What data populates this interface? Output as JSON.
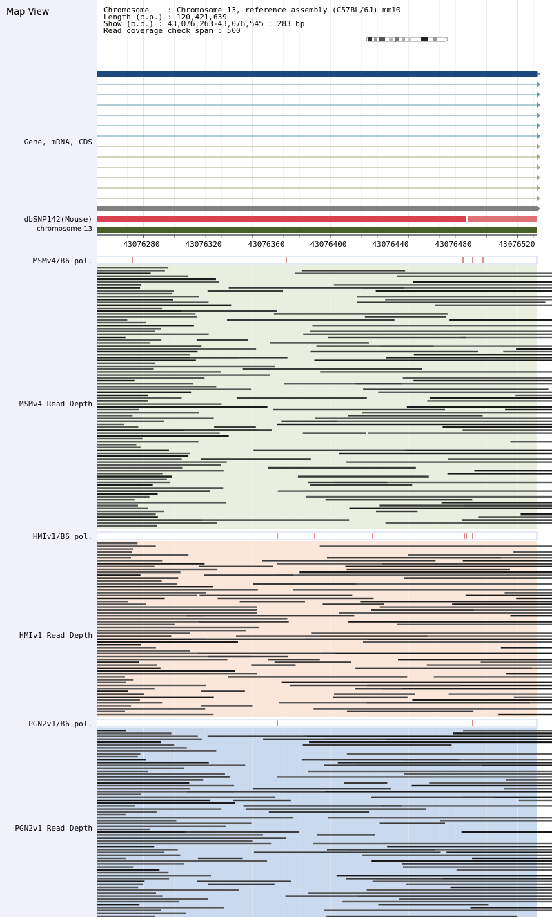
{
  "title": "Map View",
  "info": {
    "line1": "Chromosome    : Chromosome 13, reference assembly (C57BL/6J) mm10",
    "line2": "Length (b.p.) : 120,421,639",
    "line3": "Show (b.p.) : 43,076,263-43,076,545 : 283 bp",
    "line4": "Read coverage check span : 500"
  },
  "labels": {
    "gene": "Gene, mRNA, CDS",
    "dbsnp": "dbSNP142(Mouse)",
    "chrom": "chromosome 13",
    "msm_pol": "MSMv4/B6 pol.",
    "msm_depth": "MSMv4 Read Depth",
    "hmi_pol": "HMIv1/B6 pol.",
    "hmi_depth": "HMIv1 Read Depth",
    "pgn_pol": "PGN2v1/B6 pol.",
    "pgn_depth": "PGN2v1 Read Depth"
  },
  "axis_ticks": [
    "43076280",
    "43076320",
    "43076360",
    "43076400",
    "43076440",
    "43076480",
    "43076520"
  ],
  "colors": {
    "left_panel": "#f1f1fb",
    "gene_main": "#1c4a7e",
    "transcript_teal": "#5f9ea8",
    "transcript_olive": "#a8a878",
    "dbsnp": "#d94050",
    "chrom_bar": "#4a5e28",
    "msm_bg": "#e9efdf",
    "hmi_bg": "#fbe7da",
    "pgn_bg": "#c9d9ee"
  }
}
